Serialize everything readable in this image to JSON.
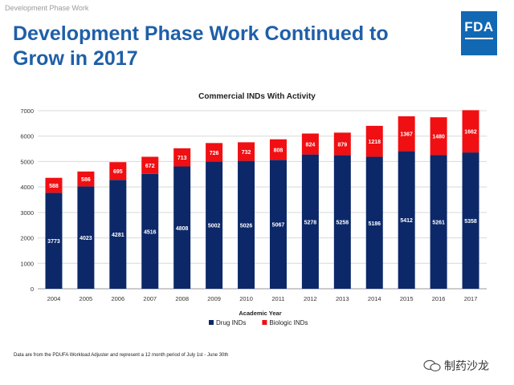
{
  "header": {
    "label": "Development Phase Work"
  },
  "title": "Development Phase Work Continued to Grow in 2017",
  "logo": {
    "text": "FDA"
  },
  "footnote": "Data are from the PDUFA Workload Adjuster and represent a 12 month period of July 1st - June 30th",
  "watermark": {
    "text": "制药沙龙"
  },
  "colors": {
    "title": "#1f5fa8",
    "drug": "#0c2869",
    "biologic": "#f00f12",
    "logo_bg": "#1268b3"
  },
  "chart_data": {
    "type": "bar",
    "stacked": true,
    "title": "Commercial INDs With Activity",
    "xlabel": "Academic Year",
    "ylabel": "",
    "ylim": [
      0,
      7000
    ],
    "yticks": [
      0,
      1000,
      2000,
      3000,
      4000,
      5000,
      6000,
      7000
    ],
    "grid": true,
    "legend_position": "bottom",
    "categories": [
      "2004",
      "2005",
      "2006",
      "2007",
      "2008",
      "2009",
      "2010",
      "2011",
      "2012",
      "2013",
      "2014",
      "2015",
      "2016",
      "2017"
    ],
    "series": [
      {
        "name": "Drug INDs",
        "color": "#0c2869",
        "values": [
          3773,
          4023,
          4281,
          4516,
          4808,
          5002,
          5026,
          5067,
          5278,
          5258,
          5186,
          5412,
          5261,
          5358
        ]
      },
      {
        "name": "Biologic INDs",
        "color": "#f00f12",
        "values": [
          588,
          586,
          695,
          672,
          713,
          726,
          732,
          808,
          824,
          879,
          1218,
          1367,
          1480,
          1662
        ]
      }
    ]
  }
}
